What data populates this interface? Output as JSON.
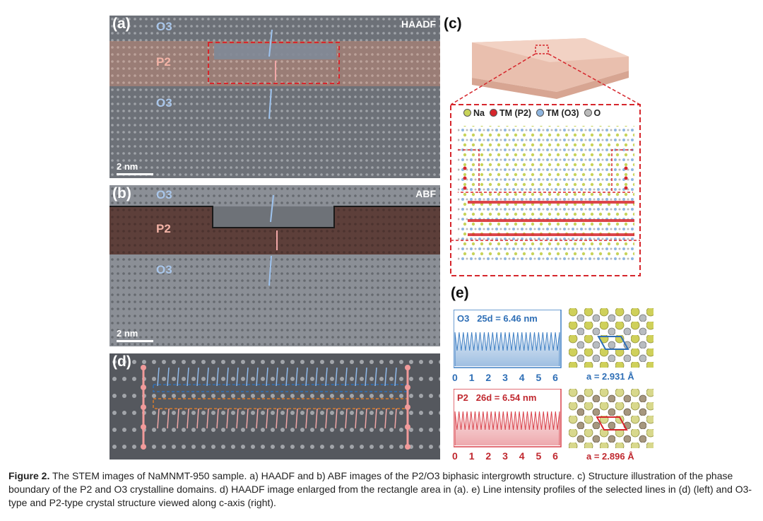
{
  "panel_a": {
    "label": "(a)",
    "mode": "HAADF",
    "phase_top": "O3",
    "phase_mid": "P2",
    "phase_bot": "O3",
    "scale": "2 nm"
  },
  "panel_b": {
    "label": "(b)",
    "mode": "ABF",
    "phase_top": "O3",
    "phase_mid": "P2",
    "phase_bot": "O3",
    "scale": "2 nm"
  },
  "panel_c": {
    "label": "(c)",
    "legend": {
      "na": "Na",
      "tm_p2": "TM (P2)",
      "tm_o3": "TM (O3)",
      "o": "O"
    }
  },
  "panel_d": {
    "label": "(d)"
  },
  "panel_e": {
    "label": "(e)",
    "o3": {
      "phase": "O3",
      "formula": "25d = 6.46 nm",
      "lattice": "a = 2.931 Å",
      "ticks": [
        "0",
        "1",
        "2",
        "3",
        "4",
        "5",
        "6"
      ],
      "color": "#3e7fc4"
    },
    "p2": {
      "phase": "P2",
      "formula": "26d = 6.54 nm",
      "lattice": "a = 2.896 Å",
      "ticks": [
        "0",
        "1",
        "2",
        "3",
        "4",
        "5",
        "6"
      ],
      "color": "#d9414a"
    }
  },
  "caption": {
    "figure": "Figure 2.",
    "text": "The STEM images of NaMNMT-950 sample. a) HAADF and b) ABF images of the P2/O3 biphasic intergrowth structure. c) Structure illustration of the phase boundary of the P2 and O3 crystalline domains. d) HAADF image enlarged from the rectangle area in (a). e) Line intensity profiles of the selected lines in (d) (left) and O3-type and P2-type crystal structure viewed along c-axis (right)."
  }
}
